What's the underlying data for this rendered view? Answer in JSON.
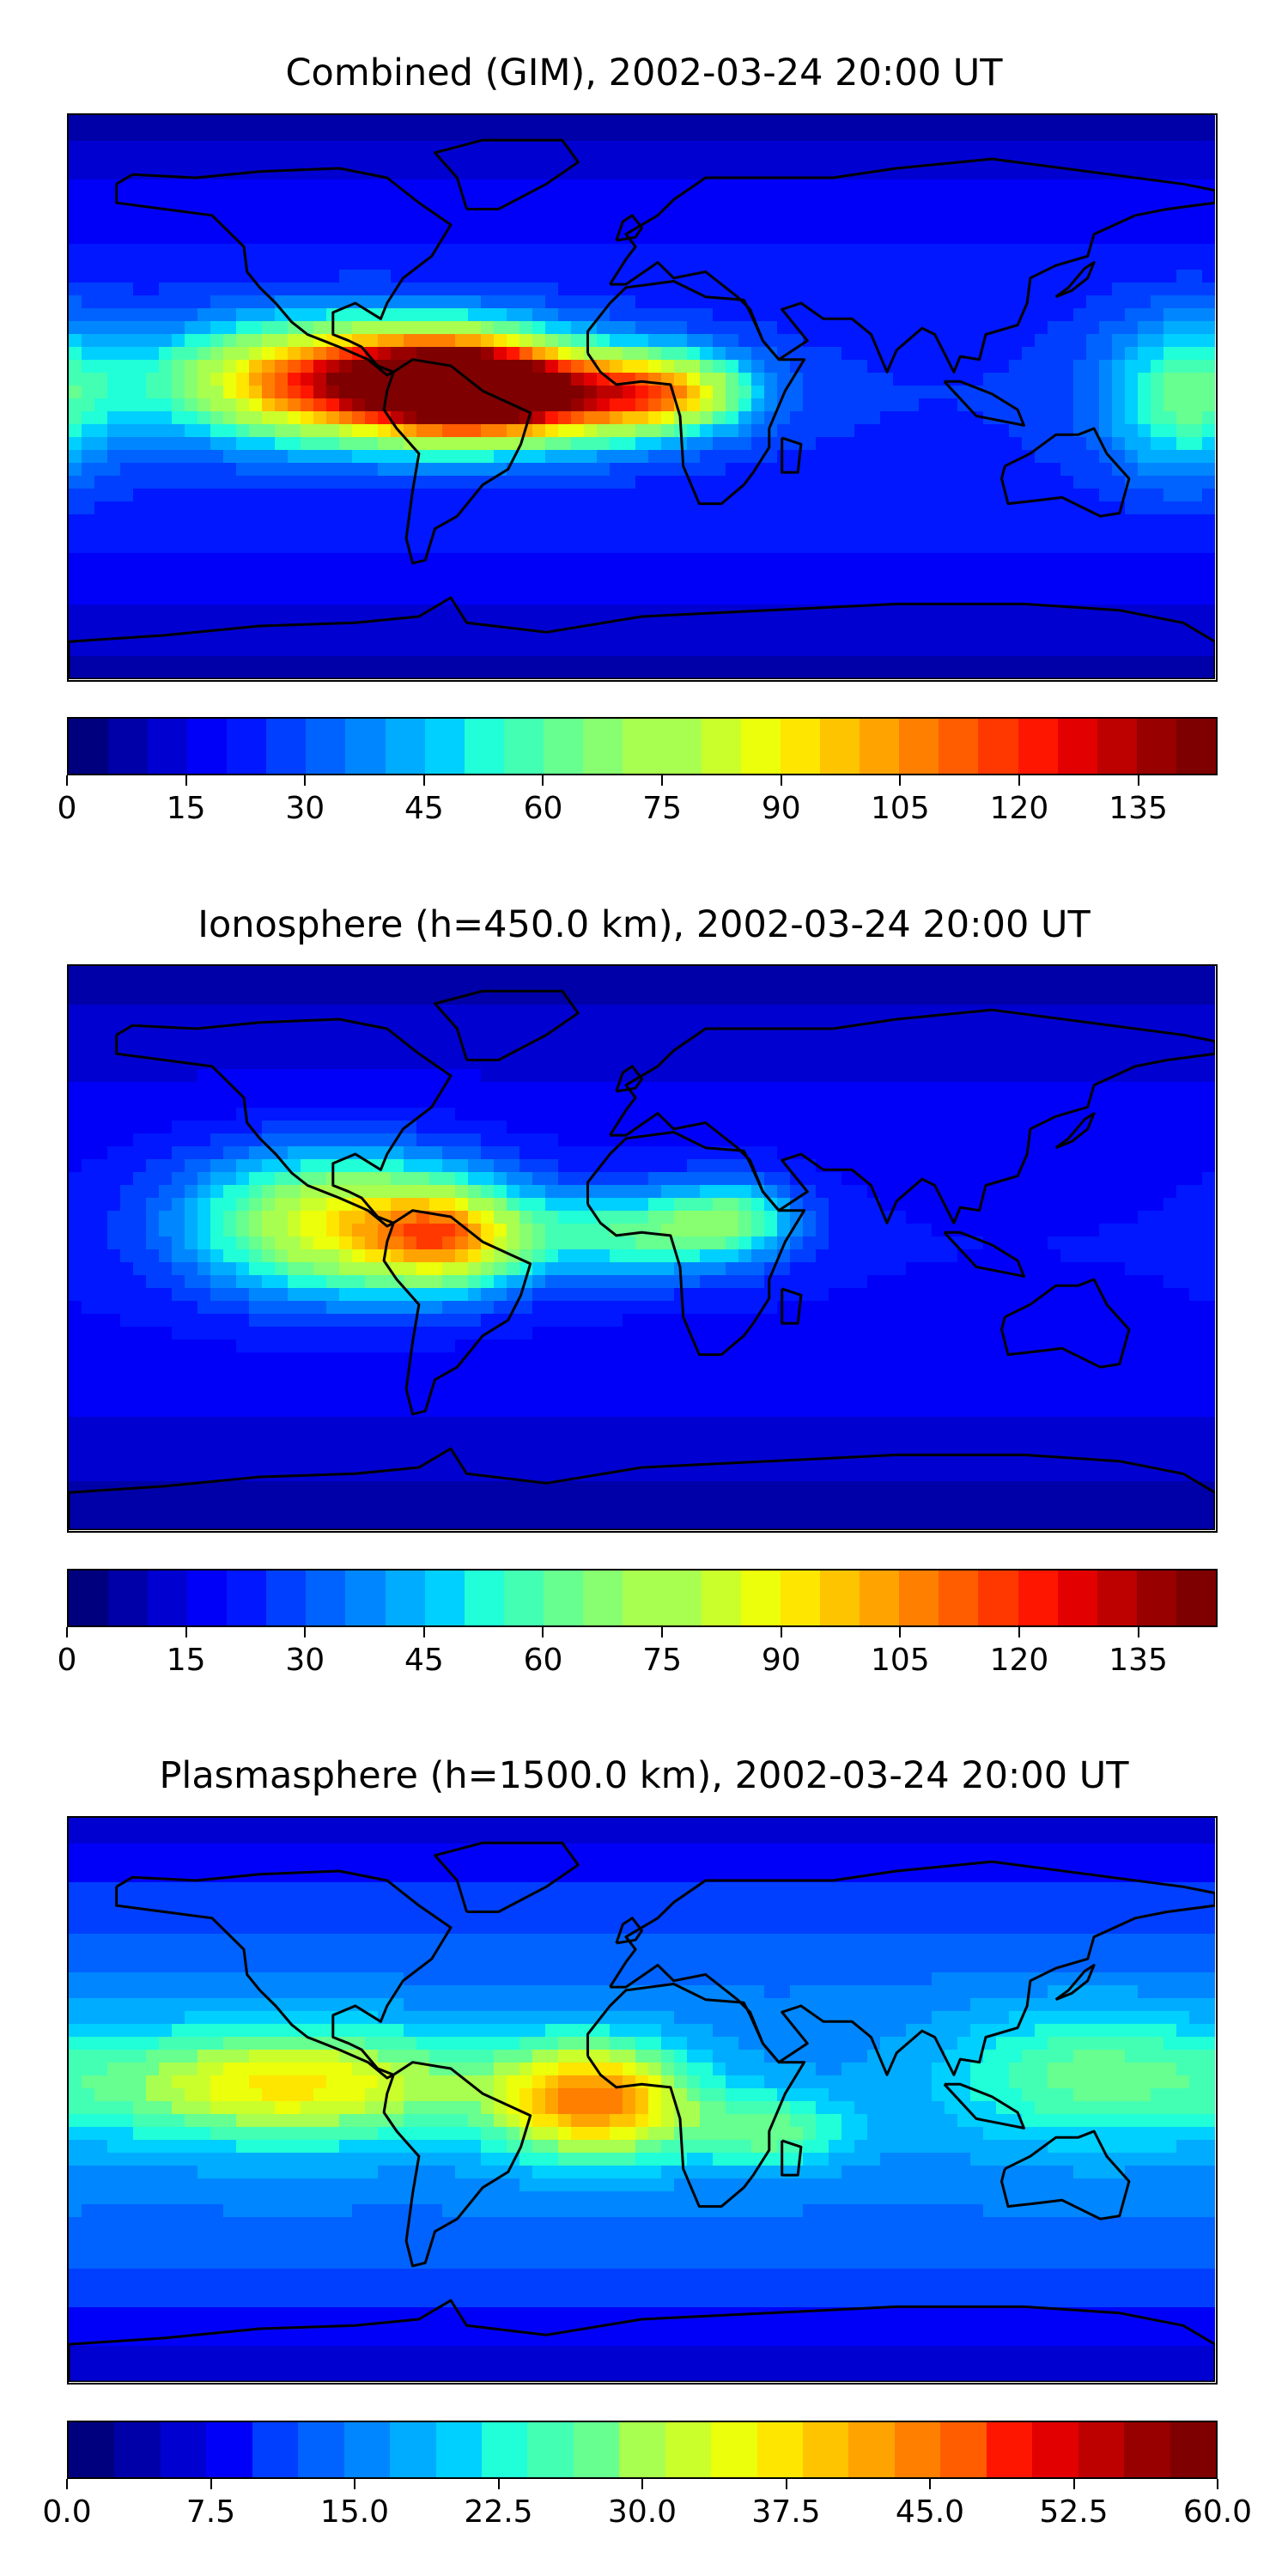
{
  "colormap": [
    "#00007f",
    "#0000a8",
    "#0000d1",
    "#0000f9",
    "#0017ff",
    "#003fff",
    "#0063ff",
    "#0087ff",
    "#00acff",
    "#00d0ff",
    "#20ffd7",
    "#43ffb4",
    "#66ff90",
    "#87ff70",
    "#a8ff4f",
    "#caff2c",
    "#ecff0b",
    "#ffe600",
    "#ffc400",
    "#ffa300",
    "#ff7f00",
    "#ff5d00",
    "#ff3800",
    "#ff1600",
    "#e30000",
    "#bd0000",
    "#980000",
    "#7f0000"
  ],
  "continent_color": "#000000",
  "panels": [
    {
      "title": "Combined (GIM), 2002-03-24 20:00 UT",
      "colorbar": {
        "min": 0,
        "max": 145,
        "levels": 29,
        "ticks": [
          "0",
          "15",
          "30",
          "45",
          "60",
          "75",
          "90",
          "105",
          "120",
          "135"
        ],
        "tick_values": [
          0,
          15,
          30,
          45,
          60,
          75,
          90,
          105,
          120,
          135
        ]
      },
      "field_blobs": [
        {
          "lon": -90,
          "lat": 5,
          "value": 130,
          "rx": 55,
          "ry": 18
        },
        {
          "lon": -55,
          "lat": 3,
          "value": 118,
          "rx": 30,
          "ry": 15
        },
        {
          "lon": -20,
          "lat": 0,
          "value": 90,
          "rx": 35,
          "ry": 14
        },
        {
          "lon": 10,
          "lat": 2,
          "value": 75,
          "rx": 25,
          "ry": 12
        },
        {
          "lon": 170,
          "lat": 0,
          "value": 60,
          "rx": 25,
          "ry": 25
        }
      ],
      "background_value": 25
    },
    {
      "title": "Ionosphere  (h=450.0 km), 2002-03-24 20:00 UT",
      "colorbar": {
        "min": 0,
        "max": 145,
        "levels": 29,
        "ticks": [
          "0",
          "15",
          "30",
          "45",
          "60",
          "75",
          "90",
          "105",
          "120",
          "135"
        ],
        "tick_values": [
          0,
          15,
          30,
          45,
          60,
          75,
          90,
          105,
          120,
          135
        ]
      },
      "field_blobs": [
        {
          "lon": -95,
          "lat": 8,
          "value": 88,
          "rx": 45,
          "ry": 22
        },
        {
          "lon": -60,
          "lat": 3,
          "value": 78,
          "rx": 25,
          "ry": 15
        },
        {
          "lon": 0,
          "lat": 5,
          "value": 60,
          "rx": 35,
          "ry": 14
        },
        {
          "lon": 30,
          "lat": 10,
          "value": 50,
          "rx": 20,
          "ry": 12
        }
      ],
      "background_value": 20
    },
    {
      "title": "Plasmasphere (h=1500.0 km), 2002-03-24 20:00 UT",
      "colorbar": {
        "min": 0,
        "max": 60,
        "levels": 25,
        "ticks": [
          "0.0",
          "7.5",
          "15.0",
          "22.5",
          "30.0",
          "37.5",
          "45.0",
          "52.5",
          "60.0"
        ],
        "tick_values": [
          0,
          7.5,
          15,
          22.5,
          30,
          37.5,
          45,
          52.5,
          60
        ]
      },
      "field_blobs": [
        {
          "lon": -110,
          "lat": 5,
          "value": 37,
          "rx": 60,
          "ry": 18
        },
        {
          "lon": -15,
          "lat": 0,
          "value": 44,
          "rx": 30,
          "ry": 18
        },
        {
          "lon": 140,
          "lat": 8,
          "value": 27,
          "rx": 45,
          "ry": 22
        },
        {
          "lon": 40,
          "lat": -10,
          "value": 28,
          "rx": 25,
          "ry": 12
        }
      ],
      "background_value": 16
    }
  ]
}
